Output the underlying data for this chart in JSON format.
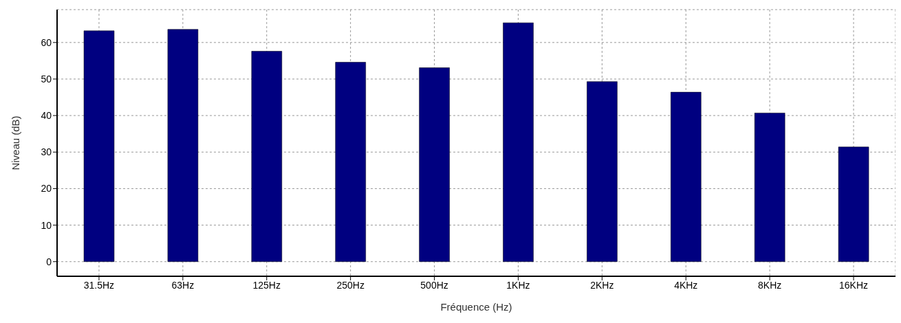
{
  "chart_data": {
    "type": "bar",
    "xlabel": "Fréquence (Hz)",
    "ylabel": "Niveau (dB)",
    "categories": [
      "31.5Hz",
      "63Hz",
      "125Hz",
      "250Hz",
      "500Hz",
      "1KHz",
      "2KHz",
      "4KHz",
      "8KHz",
      "16KHz"
    ],
    "values": [
      63.2,
      63.6,
      57.6,
      54.6,
      53.1,
      65.4,
      49.3,
      46.4,
      40.7,
      31.4
    ],
    "color": "#000080",
    "ylim": [
      -4,
      69
    ],
    "yticks": [
      0,
      10,
      20,
      30,
      40,
      50,
      60
    ],
    "grid": true,
    "legend": false
  }
}
